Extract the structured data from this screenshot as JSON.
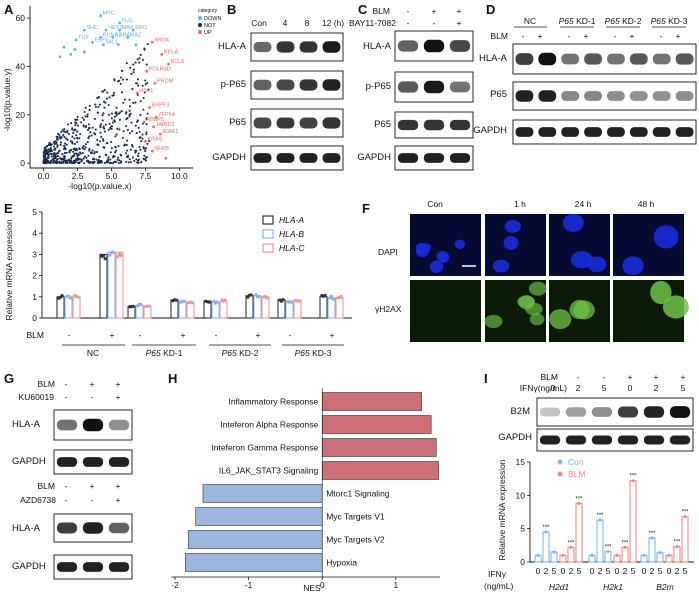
{
  "colors": {
    "scatter_not": "#1b2a4a",
    "scatter_down": "#6aaee8",
    "scatter_up": "#e0706a",
    "hla_a": "#333333",
    "hla_b": "#8fb0ea",
    "hla_c": "#e99a9a",
    "gsea_pos": "#cc6f78",
    "gsea_neg": "#9cb6de",
    "con_series": "#7fb7ef",
    "blm_series": "#ee8a8a",
    "dapi": "#1a2bd8",
    "h2ax": "#6fc14a"
  },
  "panels": {
    "A": {
      "label": "A",
      "xlabel": "-log10(p.value.x)",
      "ylabel": "-log10(p.value.y)",
      "legend_title": "category",
      "legend": [
        "DOWN",
        "NOT",
        "UP"
      ],
      "down_genes": [
        "MYC",
        "FLG",
        "SHC",
        "HEY1",
        "MAX",
        "ERG",
        "RUNX1",
        "RARA",
        "MAZ",
        "TCF",
        "EBF1",
        "TAL1"
      ],
      "up_genes": [
        "BRD4",
        "RELA",
        "BCL6",
        "POLR3D",
        "PRDM",
        "HSF1",
        "BRPF3",
        "ZFP64",
        "RBBP5",
        "JARID2",
        "IRAK1",
        "KRAS",
        "NFKB"
      ]
    },
    "B": {
      "label": "B",
      "conditions": [
        "Con",
        "4",
        "8",
        "12 (h)"
      ],
      "rows": [
        "HLA-A",
        "p-P65",
        "P65",
        "GAPDH"
      ]
    },
    "C": {
      "label": "C",
      "treat_rows": [
        {
          "name": "BLM",
          "marks": [
            "-",
            "+",
            "+"
          ]
        },
        {
          "name": "BAY11-7082",
          "marks": [
            "-",
            "-",
            "+"
          ]
        }
      ],
      "rows": [
        "HLA-A",
        "p-P65",
        "P65",
        "GAPDH"
      ]
    },
    "D": {
      "label": "D",
      "groups": [
        "NC",
        "P65 KD-1",
        "P65 KD-2",
        "P65 KD-3"
      ],
      "group_prefix": "P65",
      "group_suffixes": [
        "KD-1",
        "KD-2",
        "KD-3"
      ],
      "blm_label": "BLM",
      "blm_marks": [
        "-",
        "+",
        "-",
        "+",
        "-",
        "+",
        "-",
        "+"
      ],
      "rows": [
        "HLA-A",
        "P65",
        "GAPDH"
      ]
    },
    "E": {
      "label": "E",
      "ylabel": "Relative mRNA expression",
      "legend": [
        "HLA-A",
        "HLA-B",
        "HLA-C"
      ],
      "blm_label": "BLM",
      "blm_marks": [
        "-",
        "+",
        "-",
        "+",
        "-",
        "+",
        "-",
        "+"
      ],
      "groups": [
        "NC",
        "P65 KD-1",
        "P65 KD-2",
        "P65 KD-3"
      ]
    },
    "F": {
      "label": "F",
      "columns": [
        "Con",
        "1 h",
        "24 h",
        "48 h"
      ],
      "rows": [
        "DAPI",
        "γH2AX"
      ]
    },
    "G": {
      "label": "G",
      "top_treat": [
        {
          "name": "BLM",
          "marks": [
            "-",
            "+",
            "+"
          ]
        },
        {
          "name": "KU60019",
          "marks": [
            "-",
            "-",
            "+"
          ]
        }
      ],
      "bottom_treat": [
        {
          "name": "BLM",
          "marks": [
            "-",
            "+",
            "+"
          ]
        },
        {
          "name": "AZD6738",
          "marks": [
            "-",
            "-",
            "+"
          ]
        }
      ],
      "rows": [
        "HLA-A",
        "GAPDH",
        "HLA-A",
        "GAPDH"
      ]
    },
    "H": {
      "label": "H",
      "xlabel": "NES",
      "ticks": [
        "-2",
        "-1",
        "0",
        "1"
      ]
    },
    "I": {
      "label": "I",
      "blm_label": "BLM",
      "ifn_label": "IFNγ(ng/mL)",
      "blm_marks": [
        "-",
        "-",
        "-",
        "+",
        "+",
        "+"
      ],
      "ifn_marks": [
        "0",
        "2",
        "5",
        "0",
        "2",
        "5"
      ],
      "blot_rows": [
        "B2M",
        "GAPDH"
      ],
      "ylabel": "Relative mRNA expression",
      "legend": [
        "Con",
        "BLM"
      ],
      "xaxis_title": "IFNγ",
      "xaxis_unit": "(ng/mL)",
      "dose_labels": [
        "0",
        "2",
        "5",
        "0",
        "2",
        "5"
      ],
      "genes": [
        "H2d1",
        "H2k1",
        "B2m"
      ],
      "sig": "***"
    }
  },
  "chart_data": [
    {
      "type": "scatter",
      "panel": "A",
      "xlabel": "-log10(p.value.x)",
      "ylabel": "-log10(p.value.y)",
      "xlim": [
        -1,
        11
      ],
      "ylim": [
        -2,
        65
      ],
      "xticks": [
        0.0,
        2.5,
        5.0,
        7.5,
        10.0
      ],
      "xtick_labels": [
        "0.0",
        "2.5",
        "5.0",
        "7.5",
        "10.0"
      ],
      "yticks": [
        0,
        20,
        40,
        60
      ],
      "legend": [
        "DOWN",
        "NOT",
        "UP"
      ],
      "series": [
        {
          "name": "DOWN",
          "points": [
            [
              4.2,
              61
            ],
            [
              5.6,
              58
            ],
            [
              3.0,
              55
            ],
            [
              4.6,
              55
            ],
            [
              5.6,
              55
            ],
            [
              6.6,
              55
            ],
            [
              4.2,
              52
            ],
            [
              5.1,
              52
            ],
            [
              6.2,
              52
            ],
            [
              2.4,
              51
            ],
            [
              3.6,
              50
            ],
            [
              4.4,
              49
            ],
            [
              5.5,
              49
            ],
            [
              6.8,
              49
            ],
            [
              1.5,
              48
            ],
            [
              2.3,
              47
            ],
            [
              1.2,
              44
            ],
            [
              3.0,
              46
            ],
            [
              2.0,
              45
            ]
          ]
        },
        {
          "name": "UP",
          "points": [
            [
              8.0,
              50
            ],
            [
              8.7,
              45
            ],
            [
              9.2,
              41
            ],
            [
              7.6,
              38
            ],
            [
              8.2,
              33
            ],
            [
              6.9,
              29
            ],
            [
              7.8,
              23
            ],
            [
              8.3,
              19
            ],
            [
              7.4,
              17
            ],
            [
              8.1,
              15
            ],
            [
              8.6,
              12
            ],
            [
              7.5,
              9
            ],
            [
              8.0,
              5
            ],
            [
              9.0,
              2
            ]
          ]
        }
      ]
    },
    {
      "type": "bar",
      "panel": "E",
      "title": "",
      "xlabel": "",
      "ylabel": "Relative mRNA expression",
      "ylim": [
        0,
        5
      ],
      "yticks": [
        0,
        1,
        2,
        3,
        4,
        5
      ],
      "categories": [
        "NC -",
        "NC +",
        "P65 KD-1 -",
        "P65 KD-1 +",
        "P65 KD-2 -",
        "P65 KD-2 +",
        "P65 KD-3 -",
        "P65 KD-3 +"
      ],
      "series": [
        {
          "name": "HLA-A",
          "values": [
            1.0,
            3.0,
            0.55,
            0.85,
            0.8,
            1.05,
            0.85,
            1.0
          ]
        },
        {
          "name": "HLA-B",
          "values": [
            1.0,
            3.1,
            0.6,
            0.8,
            0.75,
            1.05,
            0.8,
            0.95
          ]
        },
        {
          "name": "HLA-C",
          "values": [
            1.0,
            3.1,
            0.55,
            0.75,
            0.8,
            1.0,
            0.85,
            0.95
          ]
        }
      ]
    },
    {
      "type": "bar",
      "panel": "H",
      "orientation": "horizontal",
      "xlabel": "NES",
      "xlim": [
        -2,
        1.6
      ],
      "xticks": [
        -2,
        -1,
        0,
        1
      ],
      "categories": [
        "Inflammatory Response",
        "Interferon Alpha Response",
        "Interferon Gamma Response",
        "IL6_JAK_STAT3 Signaling",
        "Mtorc1 Signaling",
        "Myc Targets V1",
        "Myc Targets V2",
        "Hypoxia"
      ],
      "display_labels": [
        "Inflammatory Response",
        "Inteferon Alpha Response",
        "Inteferon Gamma Response",
        "IL6_JAK_STAT3 Signaling",
        "Mtorc1 Signaling",
        "Myc Targets V1",
        "Myc Targets V2",
        "Hypoxia"
      ],
      "values": [
        1.35,
        1.48,
        1.55,
        1.58,
        -1.62,
        -1.72,
        -1.82,
        -1.86
      ]
    },
    {
      "type": "bar",
      "panel": "I",
      "ylabel": "Relative mRNA expression",
      "ylim": [
        0,
        15
      ],
      "yticks": [
        0,
        5,
        10,
        15
      ],
      "genes": [
        "H2d1",
        "H2k1",
        "B2m"
      ],
      "doses": [
        0,
        2,
        5
      ],
      "series": [
        {
          "name": "Con",
          "values": [
            [
              1.0,
              4.5,
              1.5
            ],
            [
              1.0,
              6.3,
              1.6
            ],
            [
              1.0,
              3.6,
              1.4
            ]
          ]
        },
        {
          "name": "BLM",
          "values": [
            [
              1.0,
              2.2,
              8.8
            ],
            [
              1.0,
              2.2,
              12.2
            ],
            [
              1.0,
              2.3,
              6.8
            ]
          ]
        }
      ]
    }
  ]
}
